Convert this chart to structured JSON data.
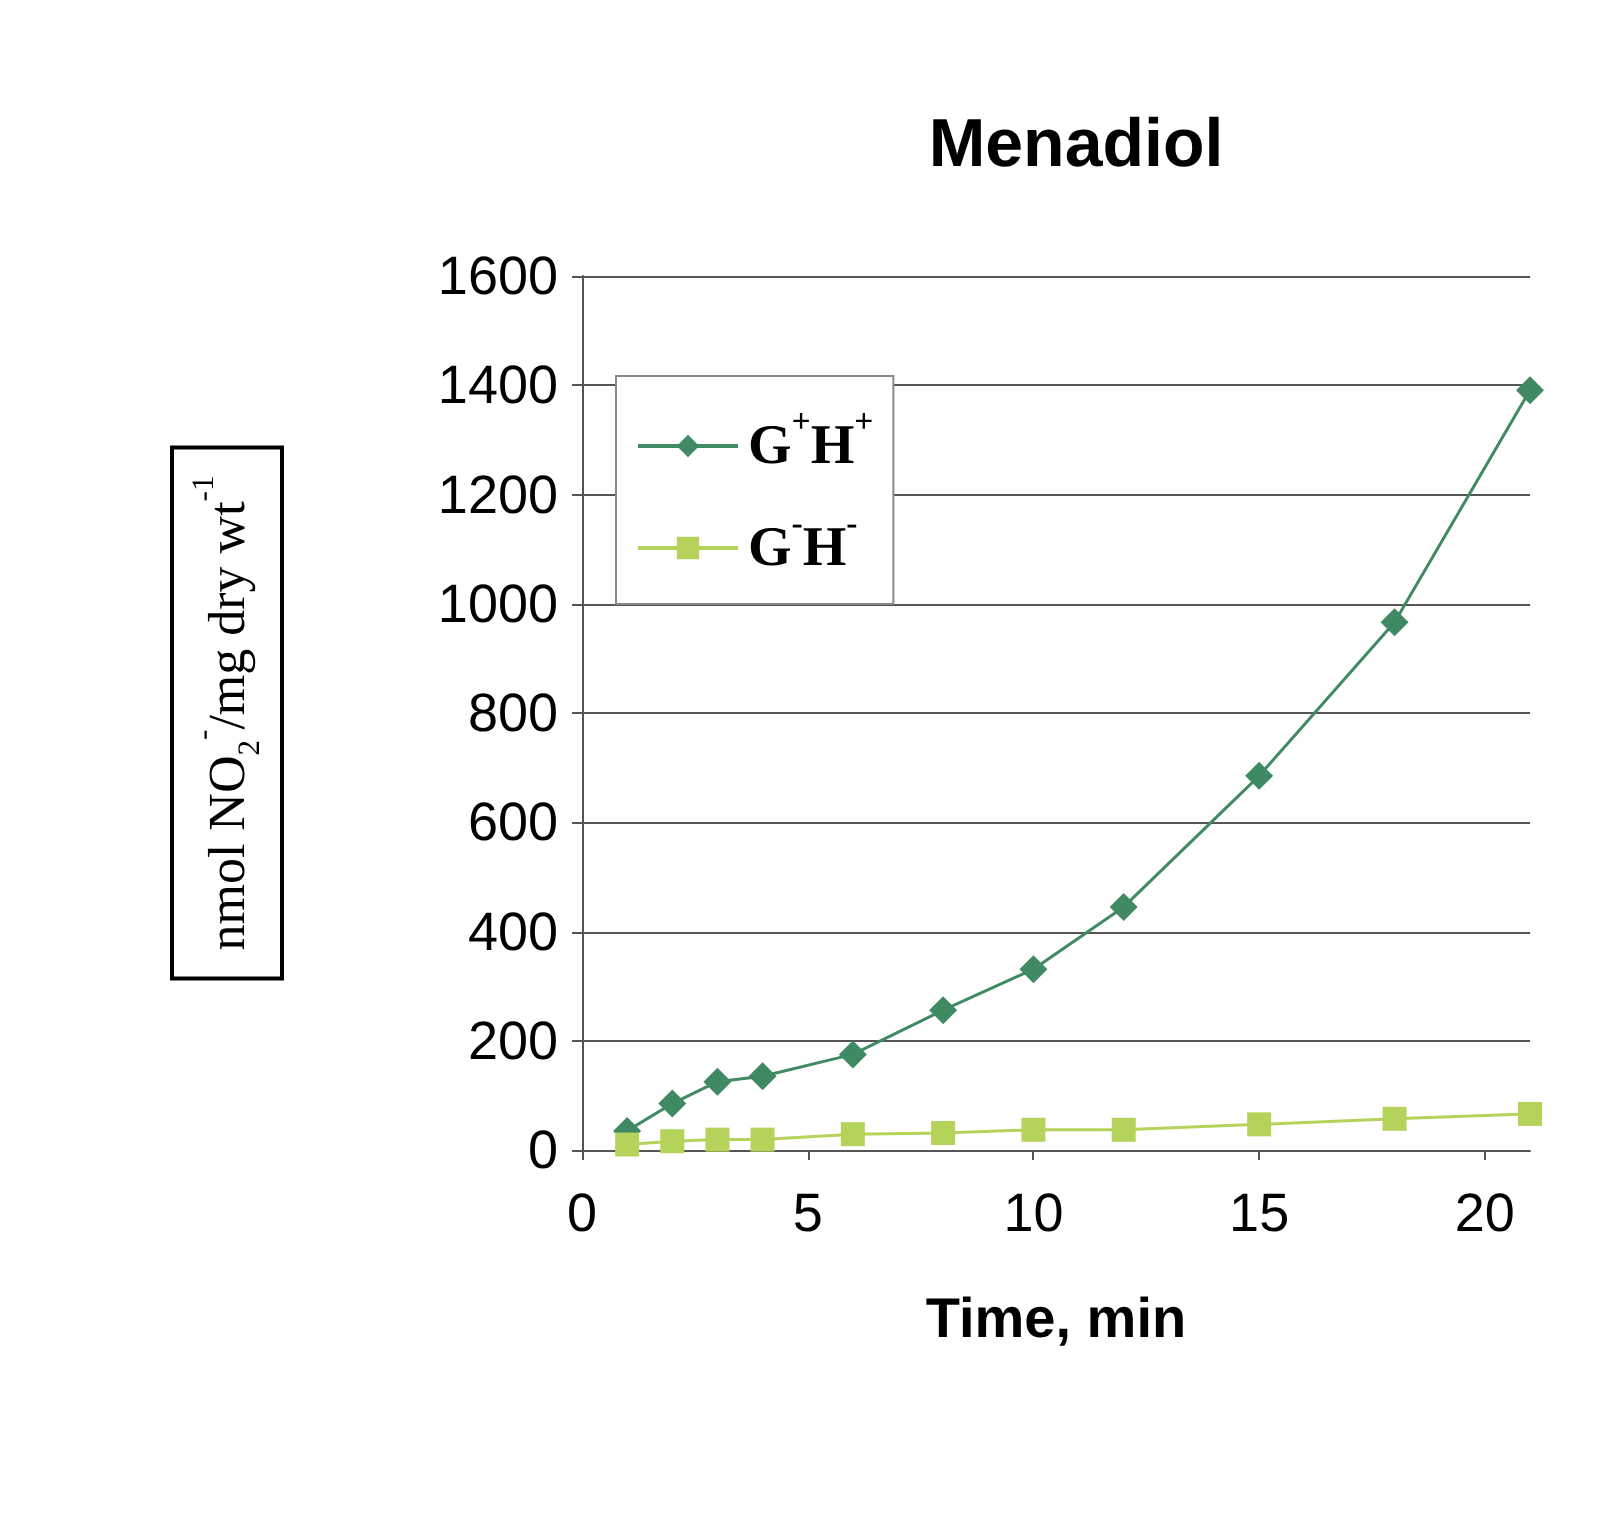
{
  "chart_data": {
    "type": "line",
    "title": "Menadiol",
    "xlabel": "Time, min",
    "ylabel": "nmol NO$_{2}$$^{-}$/mg dry wt$^{-1}$",
    "x": [
      1,
      2,
      3,
      4,
      6,
      8,
      10,
      12,
      15,
      18,
      21
    ],
    "series": [
      {
        "name": "G$^{+}$H$^{+}$",
        "color": "#3f8a62",
        "marker": "diamond",
        "values": [
          35,
          85,
          125,
          135,
          175,
          256,
          331,
          445,
          685,
          966,
          1391
        ]
      },
      {
        "name": "G$^{-}$H$^{-}$",
        "color": "#b5d35a",
        "marker": "square",
        "values": [
          10,
          16,
          19,
          19,
          29,
          31,
          37,
          37,
          47,
          57,
          66
        ]
      }
    ],
    "xlim": [
      0,
      21
    ],
    "xticks": [
      0,
      5,
      10,
      15,
      20
    ],
    "ylim": [
      0,
      1600
    ],
    "yticks": [
      0,
      200,
      400,
      600,
      800,
      1000,
      1200,
      1400,
      1600
    ],
    "grid": "y",
    "legend": "top left"
  }
}
